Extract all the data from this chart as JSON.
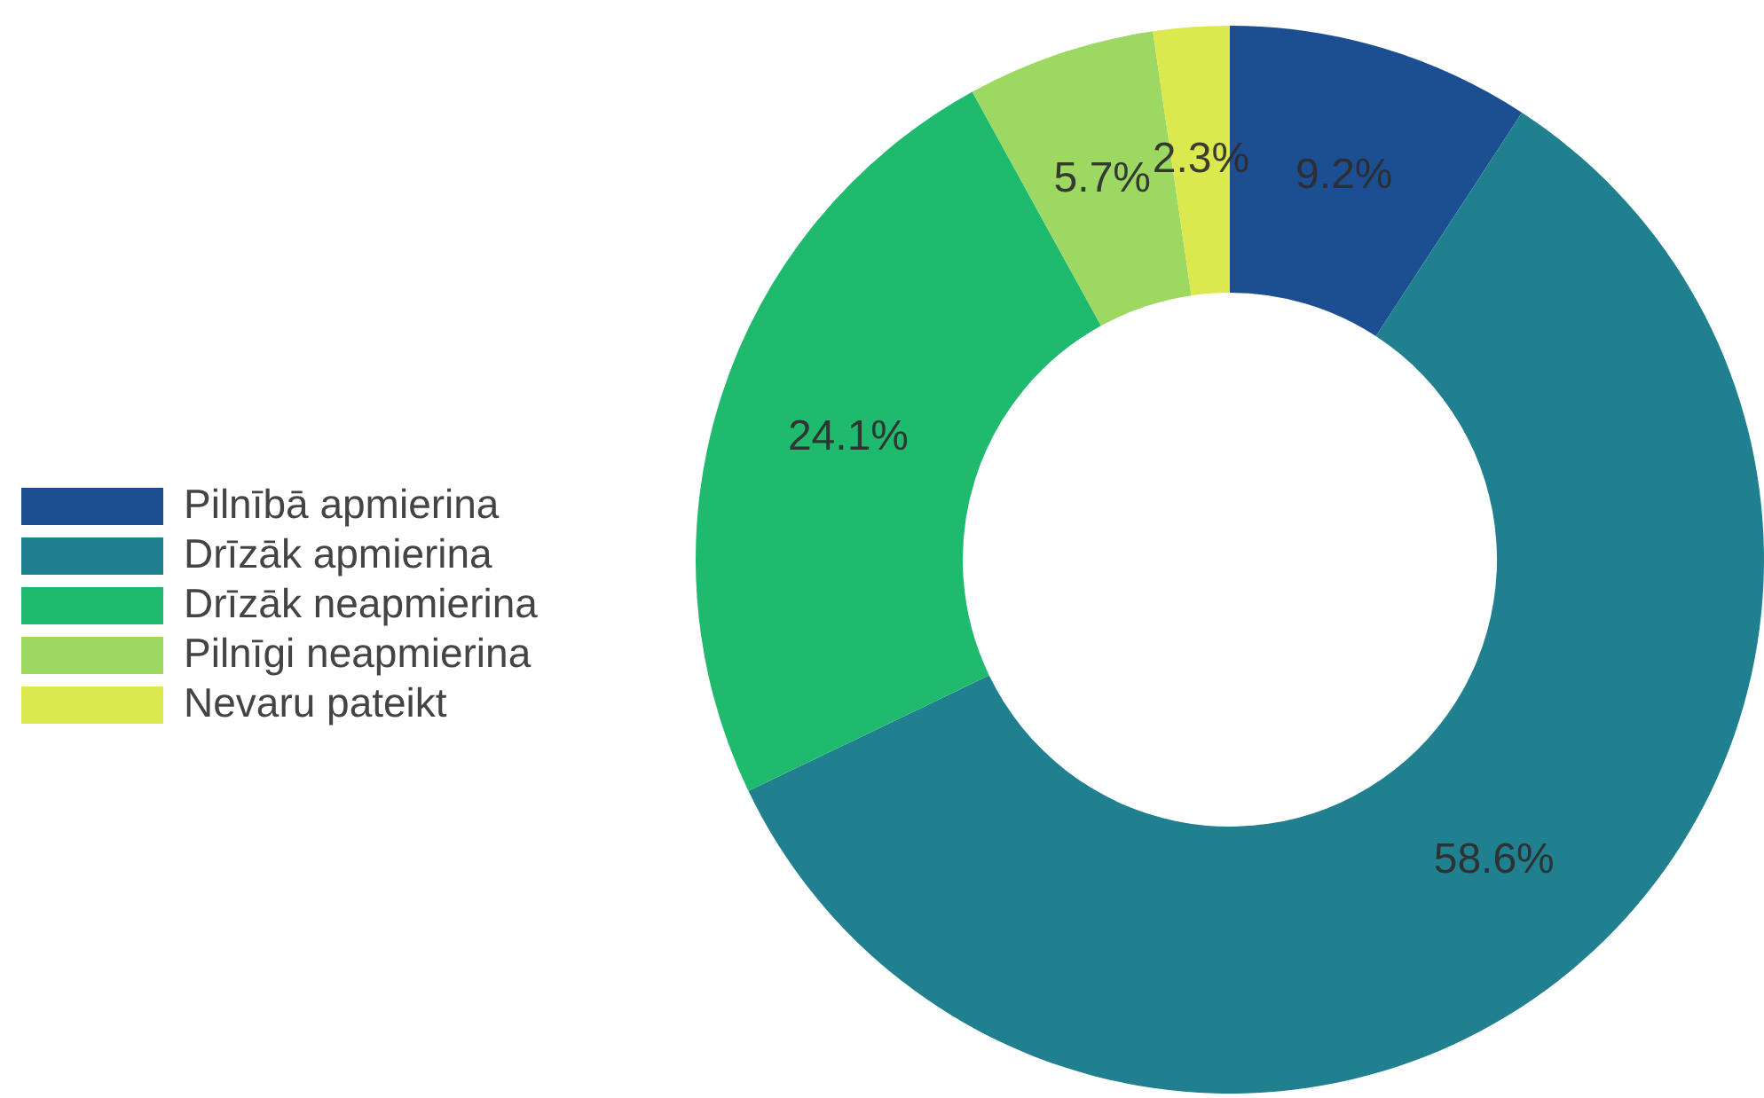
{
  "chart_data": {
    "type": "donut",
    "categories": [
      "Pilnībā apmierina",
      "Drīzāk apmierina",
      "Drīzāk neapmierina",
      "Pilnīgi neapmierina",
      "Nevaru pateikt"
    ],
    "values": [
      9.2,
      58.6,
      24.1,
      5.7,
      2.3
    ],
    "colors": [
      "#1b4f91",
      "#21808f",
      "#1fba6e",
      "#9dd862",
      "#dbe84e"
    ],
    "value_labels": [
      "9.2%",
      "58.6%",
      "24.1%",
      "5.7%",
      "2.3%"
    ],
    "legend": "left"
  }
}
